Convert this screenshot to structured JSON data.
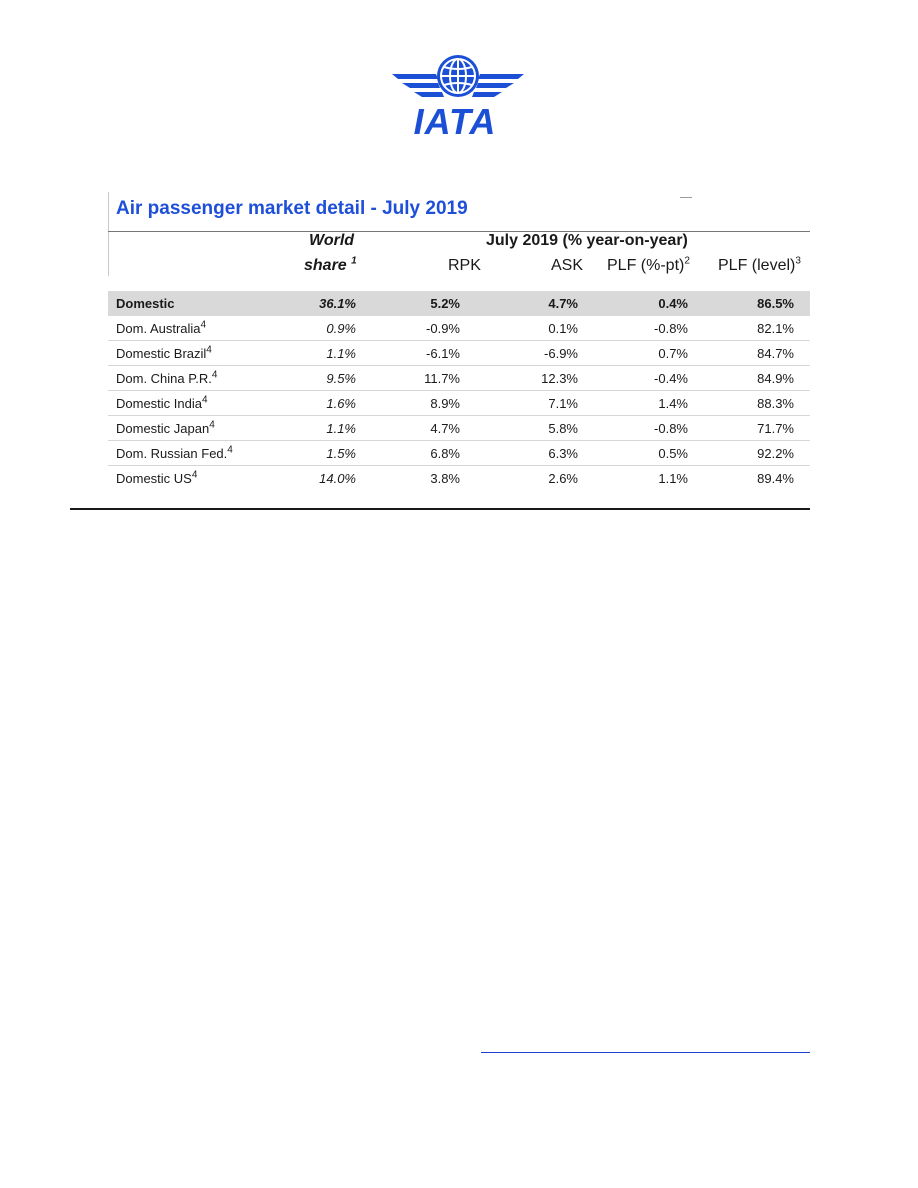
{
  "logo": {
    "text": "IATA",
    "color": "#1a4fd6"
  },
  "table": {
    "title": "Air passenger market detail - July 2019",
    "header": {
      "world_line1": "World",
      "world_line2": "share",
      "world_sup": "1",
      "period": "July 2019 (% year-on-year)",
      "rpk": "RPK",
      "ask": "ASK",
      "plf_pt": "PLF (%-pt)",
      "plf_pt_sup": "2",
      "plf_level": "PLF (level)",
      "plf_level_sup": "3"
    },
    "rows": [
      {
        "region": "Domestic",
        "sup": "",
        "share": "36.1%",
        "rpk": "5.2%",
        "ask": "4.7%",
        "plf_pt": "0.4%",
        "plf_level": "86.5%"
      },
      {
        "region": "Dom. Australia",
        "sup": "4",
        "share": "0.9%",
        "rpk": "-0.9%",
        "ask": "0.1%",
        "plf_pt": "-0.8%",
        "plf_level": "82.1%"
      },
      {
        "region": "Domestic Brazil",
        "sup": "4",
        "share": "1.1%",
        "rpk": "-6.1%",
        "ask": "-6.9%",
        "plf_pt": "0.7%",
        "plf_level": "84.7%"
      },
      {
        "region": "Dom. China P.R.",
        "sup": "4",
        "share": "9.5%",
        "rpk": "11.7%",
        "ask": "12.3%",
        "plf_pt": "-0.4%",
        "plf_level": "84.9%"
      },
      {
        "region": "Domestic India",
        "sup": "4",
        "share": "1.6%",
        "rpk": "8.9%",
        "ask": "7.1%",
        "plf_pt": "1.4%",
        "plf_level": "88.3%"
      },
      {
        "region": "Domestic Japan",
        "sup": "4",
        "share": "1.1%",
        "rpk": "4.7%",
        "ask": "5.8%",
        "plf_pt": "-0.8%",
        "plf_level": "71.7%"
      },
      {
        "region": "Dom. Russian Fed.",
        "sup": "4",
        "share": "1.5%",
        "rpk": "6.8%",
        "ask": "6.3%",
        "plf_pt": "0.5%",
        "plf_level": "92.2%"
      },
      {
        "region": "Domestic US",
        "sup": "4",
        "share": "14.0%",
        "rpk": "3.8%",
        "ask": "2.6%",
        "plf_pt": "1.1%",
        "plf_level": "89.4%"
      }
    ]
  }
}
